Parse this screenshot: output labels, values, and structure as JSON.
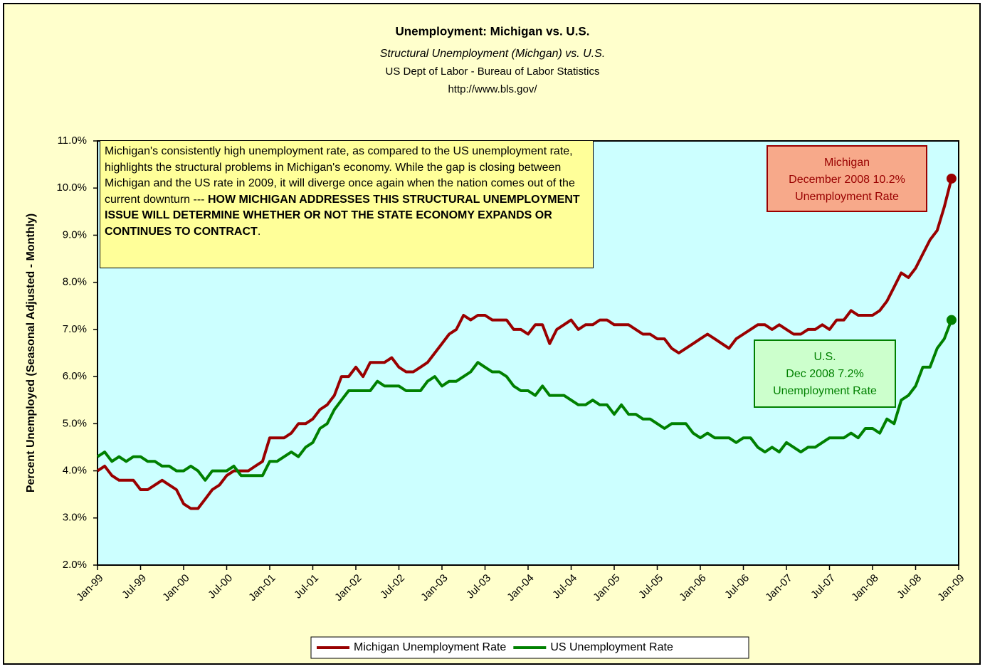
{
  "chart_data": {
    "type": "line",
    "title": "Unemployment: Michigan vs. U.S.",
    "subtitle": "Structural Unemployment (Michgan) vs. U.S.",
    "source": "US Dept of Labor - Bureau of Labor Statistics",
    "url": "http://www.bls.gov/",
    "y_label": "Percent Unemployed (Seasonal Adjusted - Monthly)",
    "annotation": [
      "Michigan's consistently high unemployment rate, as compared to the US unemployment rate, highlights the structural problems in Michigan's economy.  While the gap is closing between Michigan and the US rate in 2009, it will diverge once again when the nation comes out of the current downturn --- ",
      "HOW MICHIGAN ADDRESSES THIS STRUCTURAL UNEMPLOYMENT ISSUE WILL DETERMINE WHETHER OR NOT THE STATE ECONOMY EXPANDS OR CONTINUES TO CONTRACT",
      "."
    ],
    "callouts": [
      {
        "lines": [
          "Michigan",
          "December 2008 10.2%",
          "Unemployment Rate"
        ]
      },
      {
        "lines": [
          "U.S.",
          "Dec 2008 7.2%",
          "Unemployment Rate"
        ]
      }
    ],
    "x": [
      "1999-01",
      "1999-02",
      "1999-03",
      "1999-04",
      "1999-05",
      "1999-06",
      "1999-07",
      "1999-08",
      "1999-09",
      "1999-10",
      "1999-11",
      "1999-12",
      "2000-01",
      "2000-02",
      "2000-03",
      "2000-04",
      "2000-05",
      "2000-06",
      "2000-07",
      "2000-08",
      "2000-09",
      "2000-10",
      "2000-11",
      "2000-12",
      "2001-01",
      "2001-02",
      "2001-03",
      "2001-04",
      "2001-05",
      "2001-06",
      "2001-07",
      "2001-08",
      "2001-09",
      "2001-10",
      "2001-11",
      "2001-12",
      "2002-01",
      "2002-02",
      "2002-03",
      "2002-04",
      "2002-05",
      "2002-06",
      "2002-07",
      "2002-08",
      "2002-09",
      "2002-10",
      "2002-11",
      "2002-12",
      "2003-01",
      "2003-02",
      "2003-03",
      "2003-04",
      "2003-05",
      "2003-06",
      "2003-07",
      "2003-08",
      "2003-09",
      "2003-10",
      "2003-11",
      "2003-12",
      "2004-01",
      "2004-02",
      "2004-03",
      "2004-04",
      "2004-05",
      "2004-06",
      "2004-07",
      "2004-08",
      "2004-09",
      "2004-10",
      "2004-11",
      "2004-12",
      "2005-01",
      "2005-02",
      "2005-03",
      "2005-04",
      "2005-05",
      "2005-06",
      "2005-07",
      "2005-08",
      "2005-09",
      "2005-10",
      "2005-11",
      "2005-12",
      "2006-01",
      "2006-02",
      "2006-03",
      "2006-04",
      "2006-05",
      "2006-06",
      "2006-07",
      "2006-08",
      "2006-09",
      "2006-10",
      "2006-11",
      "2006-12",
      "2007-01",
      "2007-02",
      "2007-03",
      "2007-04",
      "2007-05",
      "2007-06",
      "2007-07",
      "2007-08",
      "2007-09",
      "2007-10",
      "2007-11",
      "2007-12",
      "2008-01",
      "2008-02",
      "2008-03",
      "2008-04",
      "2008-05",
      "2008-06",
      "2008-07",
      "2008-08",
      "2008-09",
      "2008-10",
      "2008-11",
      "2008-12"
    ],
    "series": [
      {
        "name": "Michigan Unemployment Rate",
        "color": "#990000",
        "values": [
          4.0,
          4.1,
          3.9,
          3.8,
          3.8,
          3.8,
          3.6,
          3.6,
          3.7,
          3.8,
          3.7,
          3.6,
          3.3,
          3.2,
          3.2,
          3.4,
          3.6,
          3.7,
          3.9,
          4.0,
          4.0,
          4.0,
          4.1,
          4.2,
          4.7,
          4.7,
          4.7,
          4.8,
          5.0,
          5.0,
          5.1,
          5.3,
          5.4,
          5.6,
          6.0,
          6.0,
          6.2,
          6.0,
          6.3,
          6.3,
          6.3,
          6.4,
          6.2,
          6.1,
          6.1,
          6.2,
          6.3,
          6.5,
          6.7,
          6.9,
          7.0,
          7.3,
          7.2,
          7.3,
          7.3,
          7.2,
          7.2,
          7.2,
          7.0,
          7.0,
          6.9,
          7.1,
          7.1,
          6.7,
          7.0,
          7.1,
          7.2,
          7.0,
          7.1,
          7.1,
          7.2,
          7.2,
          7.1,
          7.1,
          7.1,
          7.0,
          6.9,
          6.9,
          6.8,
          6.8,
          6.6,
          6.5,
          6.6,
          6.7,
          6.8,
          6.9,
          6.8,
          6.7,
          6.6,
          6.8,
          6.9,
          7.0,
          7.1,
          7.1,
          7.0,
          7.1,
          7.0,
          6.9,
          6.9,
          7.0,
          7.0,
          7.1,
          7.0,
          7.2,
          7.2,
          7.4,
          7.3,
          7.3,
          7.3,
          7.4,
          7.6,
          7.9,
          8.2,
          8.1,
          8.3,
          8.6,
          8.9,
          9.1,
          9.6,
          10.2
        ]
      },
      {
        "name": "US Unemployment Rate",
        "color": "#008000",
        "values": [
          4.3,
          4.4,
          4.2,
          4.3,
          4.2,
          4.3,
          4.3,
          4.2,
          4.2,
          4.1,
          4.1,
          4.0,
          4.0,
          4.1,
          4.0,
          3.8,
          4.0,
          4.0,
          4.0,
          4.1,
          3.9,
          3.9,
          3.9,
          3.9,
          4.2,
          4.2,
          4.3,
          4.4,
          4.3,
          4.5,
          4.6,
          4.9,
          5.0,
          5.3,
          5.5,
          5.7,
          5.7,
          5.7,
          5.7,
          5.9,
          5.8,
          5.8,
          5.8,
          5.7,
          5.7,
          5.7,
          5.9,
          6.0,
          5.8,
          5.9,
          5.9,
          6.0,
          6.1,
          6.3,
          6.2,
          6.1,
          6.1,
          6.0,
          5.8,
          5.7,
          5.7,
          5.6,
          5.8,
          5.6,
          5.6,
          5.6,
          5.5,
          5.4,
          5.4,
          5.5,
          5.4,
          5.4,
          5.2,
          5.4,
          5.2,
          5.2,
          5.1,
          5.1,
          5.0,
          4.9,
          5.0,
          5.0,
          5.0,
          4.8,
          4.7,
          4.8,
          4.7,
          4.7,
          4.7,
          4.6,
          4.7,
          4.7,
          4.5,
          4.4,
          4.5,
          4.4,
          4.6,
          4.5,
          4.4,
          4.5,
          4.5,
          4.6,
          4.7,
          4.7,
          4.7,
          4.8,
          4.7,
          4.9,
          4.9,
          4.8,
          5.1,
          5.0,
          5.5,
          5.6,
          5.8,
          6.2,
          6.2,
          6.6,
          6.8,
          7.2
        ]
      }
    ],
    "end_marker": true,
    "xlim": [
      "1999-01",
      "2009-01"
    ],
    "xticks": [
      {
        "value": "1999-01",
        "label": "Jan-99"
      },
      {
        "value": "1999-07",
        "label": "Jul-99"
      },
      {
        "value": "2000-01",
        "label": "Jan-00"
      },
      {
        "value": "2000-07",
        "label": "Jul-00"
      },
      {
        "value": "2001-01",
        "label": "Jan-01"
      },
      {
        "value": "2001-07",
        "label": "Jul-01"
      },
      {
        "value": "2002-01",
        "label": "Jan-02"
      },
      {
        "value": "2002-07",
        "label": "Jul-02"
      },
      {
        "value": "2003-01",
        "label": "Jan-03"
      },
      {
        "value": "2003-07",
        "label": "Jul-03"
      },
      {
        "value": "2004-01",
        "label": "Jan-04"
      },
      {
        "value": "2004-07",
        "label": "Jul-04"
      },
      {
        "value": "2005-01",
        "label": "Jan-05"
      },
      {
        "value": "2005-07",
        "label": "Jul-05"
      },
      {
        "value": "2006-01",
        "label": "Jan-06"
      },
      {
        "value": "2006-07",
        "label": "Jul-06"
      },
      {
        "value": "2007-01",
        "label": "Jan-07"
      },
      {
        "value": "2007-07",
        "label": "Jul-07"
      },
      {
        "value": "2008-01",
        "label": "Jan-08"
      },
      {
        "value": "2008-07",
        "label": "Jul-08"
      },
      {
        "value": "2009-01",
        "label": "Jan-09"
      }
    ],
    "ylim": [
      2,
      11
    ],
    "yticks": [
      {
        "value": 2,
        "label": "2.0%"
      },
      {
        "value": 3,
        "label": "3.0%"
      },
      {
        "value": 4,
        "label": "4.0%"
      },
      {
        "value": 5,
        "label": "5.0%"
      },
      {
        "value": 6,
        "label": "6.0%"
      },
      {
        "value": 7,
        "label": "7.0%"
      },
      {
        "value": 8,
        "label": "8.0%"
      },
      {
        "value": 9,
        "label": "9.0%"
      },
      {
        "value": 10,
        "label": "10.0%"
      },
      {
        "value": 11,
        "label": "11.0%"
      }
    ],
    "grid": false,
    "legend": "bottom"
  }
}
